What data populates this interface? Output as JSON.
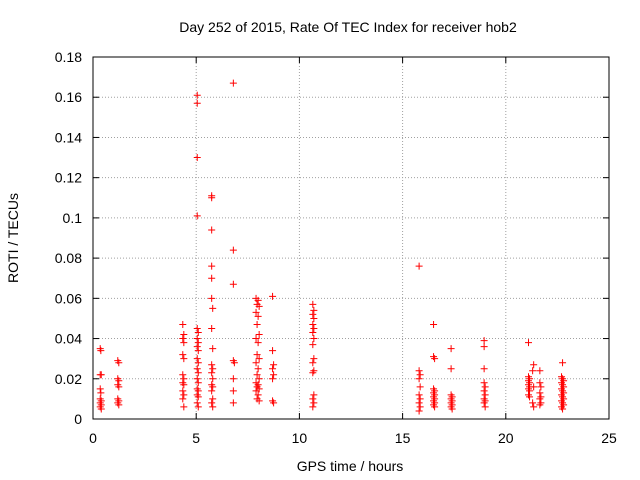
{
  "chart_data": {
    "type": "scatter",
    "title": "Day 252 of 2015, Rate Of TEC Index for receiver hob2",
    "xlabel": "GPS time / hours",
    "ylabel": "ROTI / TECUs",
    "xlim": [
      0,
      25
    ],
    "ylim": [
      0,
      0.18
    ],
    "grid": true,
    "x_ticks": [
      "0",
      "5",
      "10",
      "15",
      "20",
      "25"
    ],
    "y_ticks": [
      "0",
      "0.02",
      "0.04",
      "0.06",
      "0.08",
      "0.1",
      "0.12",
      "0.14",
      "0.16",
      "0.18"
    ],
    "marker": "+",
    "marker_color": "#ff0000",
    "points": [
      [
        0.35,
        0.035
      ],
      [
        0.38,
        0.034
      ],
      [
        0.35,
        0.022
      ],
      [
        0.4,
        0.022
      ],
      [
        0.35,
        0.015
      ],
      [
        0.38,
        0.013
      ],
      [
        0.35,
        0.01
      ],
      [
        0.4,
        0.009
      ],
      [
        0.35,
        0.008
      ],
      [
        0.4,
        0.007
      ],
      [
        0.35,
        0.006
      ],
      [
        0.4,
        0.005
      ],
      [
        1.2,
        0.029
      ],
      [
        1.25,
        0.028
      ],
      [
        1.2,
        0.02
      ],
      [
        1.25,
        0.019
      ],
      [
        1.2,
        0.017
      ],
      [
        1.25,
        0.016
      ],
      [
        1.2,
        0.01
      ],
      [
        1.25,
        0.009
      ],
      [
        1.2,
        0.008
      ],
      [
        1.25,
        0.007
      ],
      [
        4.35,
        0.047
      ],
      [
        4.4,
        0.042
      ],
      [
        4.35,
        0.04
      ],
      [
        4.4,
        0.038
      ],
      [
        4.35,
        0.032
      ],
      [
        4.4,
        0.03
      ],
      [
        4.35,
        0.022
      ],
      [
        4.4,
        0.02
      ],
      [
        4.35,
        0.018
      ],
      [
        4.4,
        0.017
      ],
      [
        4.35,
        0.014
      ],
      [
        4.4,
        0.012
      ],
      [
        4.35,
        0.01
      ],
      [
        4.4,
        0.006
      ],
      [
        5.05,
        0.161
      ],
      [
        5.05,
        0.157
      ],
      [
        5.05,
        0.13
      ],
      [
        5.05,
        0.101
      ],
      [
        5.05,
        0.045
      ],
      [
        5.1,
        0.043
      ],
      [
        5.05,
        0.04
      ],
      [
        5.1,
        0.038
      ],
      [
        5.05,
        0.036
      ],
      [
        5.1,
        0.034
      ],
      [
        5.05,
        0.03
      ],
      [
        5.1,
        0.028
      ],
      [
        5.05,
        0.025
      ],
      [
        5.1,
        0.023
      ],
      [
        5.05,
        0.02
      ],
      [
        5.1,
        0.018
      ],
      [
        5.05,
        0.015
      ],
      [
        5.1,
        0.014
      ],
      [
        5.05,
        0.012
      ],
      [
        5.1,
        0.011
      ],
      [
        5.05,
        0.008
      ],
      [
        5.1,
        0.006
      ],
      [
        5.75,
        0.111
      ],
      [
        5.75,
        0.11
      ],
      [
        5.75,
        0.094
      ],
      [
        5.75,
        0.076
      ],
      [
        5.75,
        0.07
      ],
      [
        5.75,
        0.06
      ],
      [
        5.8,
        0.055
      ],
      [
        5.75,
        0.045
      ],
      [
        5.8,
        0.035
      ],
      [
        5.75,
        0.027
      ],
      [
        5.8,
        0.025
      ],
      [
        5.75,
        0.023
      ],
      [
        5.8,
        0.02
      ],
      [
        5.75,
        0.017
      ],
      [
        5.8,
        0.016
      ],
      [
        5.75,
        0.014
      ],
      [
        5.8,
        0.01
      ],
      [
        5.75,
        0.008
      ],
      [
        5.8,
        0.006
      ],
      [
        6.8,
        0.167
      ],
      [
        6.8,
        0.084
      ],
      [
        6.8,
        0.067
      ],
      [
        6.8,
        0.029
      ],
      [
        6.85,
        0.028
      ],
      [
        6.8,
        0.02
      ],
      [
        6.8,
        0.014
      ],
      [
        6.8,
        0.008
      ],
      [
        7.9,
        0.06
      ],
      [
        8.0,
        0.059
      ],
      [
        7.95,
        0.057
      ],
      [
        8.05,
        0.056
      ],
      [
        7.9,
        0.053
      ],
      [
        8.0,
        0.051
      ],
      [
        7.95,
        0.047
      ],
      [
        8.05,
        0.042
      ],
      [
        7.9,
        0.04
      ],
      [
        8.0,
        0.038
      ],
      [
        7.95,
        0.032
      ],
      [
        8.05,
        0.03
      ],
      [
        7.9,
        0.028
      ],
      [
        8.0,
        0.025
      ],
      [
        7.95,
        0.022
      ],
      [
        8.05,
        0.02
      ],
      [
        7.9,
        0.018
      ],
      [
        8.0,
        0.017
      ],
      [
        7.95,
        0.016
      ],
      [
        8.05,
        0.015
      ],
      [
        7.9,
        0.014
      ],
      [
        8.0,
        0.012
      ],
      [
        7.95,
        0.01
      ],
      [
        8.05,
        0.009
      ],
      [
        8.7,
        0.061
      ],
      [
        8.7,
        0.034
      ],
      [
        8.75,
        0.027
      ],
      [
        8.7,
        0.025
      ],
      [
        8.75,
        0.022
      ],
      [
        8.7,
        0.02
      ],
      [
        8.7,
        0.009
      ],
      [
        8.75,
        0.008
      ],
      [
        10.65,
        0.057
      ],
      [
        10.7,
        0.054
      ],
      [
        10.65,
        0.052
      ],
      [
        10.7,
        0.05
      ],
      [
        10.65,
        0.047
      ],
      [
        10.7,
        0.045
      ],
      [
        10.65,
        0.043
      ],
      [
        10.7,
        0.04
      ],
      [
        10.65,
        0.037
      ],
      [
        10.7,
        0.03
      ],
      [
        10.65,
        0.028
      ],
      [
        10.7,
        0.024
      ],
      [
        10.65,
        0.023
      ],
      [
        10.7,
        0.012
      ],
      [
        10.65,
        0.01
      ],
      [
        10.7,
        0.008
      ],
      [
        10.65,
        0.006
      ],
      [
        15.8,
        0.076
      ],
      [
        15.8,
        0.024
      ],
      [
        15.85,
        0.022
      ],
      [
        15.8,
        0.02
      ],
      [
        15.85,
        0.016
      ],
      [
        15.8,
        0.012
      ],
      [
        15.85,
        0.01
      ],
      [
        15.8,
        0.008
      ],
      [
        15.85,
        0.006
      ],
      [
        15.8,
        0.004
      ],
      [
        16.5,
        0.047
      ],
      [
        16.5,
        0.031
      ],
      [
        16.55,
        0.03
      ],
      [
        16.5,
        0.015
      ],
      [
        16.55,
        0.014
      ],
      [
        16.5,
        0.013
      ],
      [
        16.55,
        0.012
      ],
      [
        16.5,
        0.011
      ],
      [
        16.55,
        0.01
      ],
      [
        16.5,
        0.009
      ],
      [
        16.55,
        0.008
      ],
      [
        16.5,
        0.007
      ],
      [
        16.55,
        0.006
      ],
      [
        17.35,
        0.035
      ],
      [
        17.35,
        0.025
      ],
      [
        17.35,
        0.012
      ],
      [
        17.4,
        0.011
      ],
      [
        17.35,
        0.01
      ],
      [
        17.4,
        0.009
      ],
      [
        17.35,
        0.008
      ],
      [
        17.4,
        0.007
      ],
      [
        17.35,
        0.006
      ],
      [
        17.4,
        0.005
      ],
      [
        18.95,
        0.039
      ],
      [
        18.95,
        0.036
      ],
      [
        18.95,
        0.025
      ],
      [
        18.95,
        0.018
      ],
      [
        19.0,
        0.016
      ],
      [
        18.95,
        0.014
      ],
      [
        19.0,
        0.012
      ],
      [
        18.95,
        0.01
      ],
      [
        19.0,
        0.009
      ],
      [
        18.95,
        0.008
      ],
      [
        19.0,
        0.006
      ],
      [
        21.1,
        0.038
      ],
      [
        21.1,
        0.021
      ],
      [
        21.15,
        0.02
      ],
      [
        21.1,
        0.019
      ],
      [
        21.15,
        0.018
      ],
      [
        21.1,
        0.017
      ],
      [
        21.15,
        0.016
      ],
      [
        21.1,
        0.015
      ],
      [
        21.15,
        0.014
      ],
      [
        21.1,
        0.012
      ],
      [
        21.15,
        0.011
      ],
      [
        21.35,
        0.027
      ],
      [
        21.3,
        0.024
      ],
      [
        21.35,
        0.016
      ],
      [
        21.3,
        0.008
      ],
      [
        21.35,
        0.006
      ],
      [
        21.65,
        0.024
      ],
      [
        21.65,
        0.018
      ],
      [
        21.7,
        0.016
      ],
      [
        21.65,
        0.013
      ],
      [
        21.7,
        0.011
      ],
      [
        21.65,
        0.01
      ],
      [
        21.7,
        0.008
      ],
      [
        21.65,
        0.007
      ],
      [
        22.75,
        0.028
      ],
      [
        22.7,
        0.021
      ],
      [
        22.75,
        0.02
      ],
      [
        22.8,
        0.019
      ],
      [
        22.7,
        0.018
      ],
      [
        22.75,
        0.017
      ],
      [
        22.8,
        0.016
      ],
      [
        22.7,
        0.015
      ],
      [
        22.75,
        0.014
      ],
      [
        22.8,
        0.013
      ],
      [
        22.7,
        0.012
      ],
      [
        22.75,
        0.011
      ],
      [
        22.8,
        0.01
      ],
      [
        22.7,
        0.009
      ],
      [
        22.75,
        0.008
      ],
      [
        22.8,
        0.007
      ],
      [
        22.7,
        0.006
      ],
      [
        22.75,
        0.005
      ]
    ]
  }
}
